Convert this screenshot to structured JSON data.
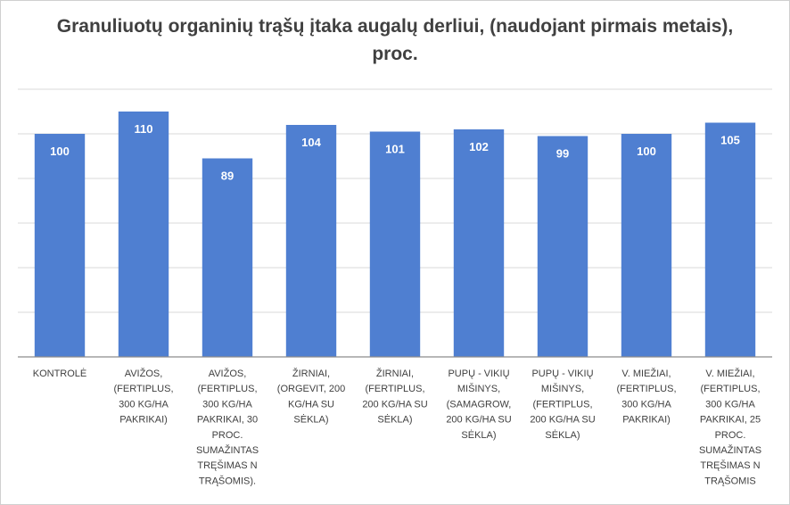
{
  "chart_data": {
    "type": "bar",
    "title": "Granuliuotų organinių trąšų įtaka augalų derliui, (naudojant pirmais metais), proc.",
    "xlabel": "",
    "ylabel": "",
    "ylim": [
      0,
      120
    ],
    "grid": true,
    "legend": "none",
    "categories": [
      "KONTROLĖ",
      "AVIŽOS, (FERTIPLUS, 300 KG/HA PAKRIKAI)",
      "AVIŽOS, (FERTIPLUS, 300 KG/HA PAKRIKAI, 30 PROC. SUMAŽINTAS TRĘŠIMAS N TRĄŠOMIS).",
      "ŽIRNIAI, (ORGEVIT, 200 KG/HA SU SĖKLA)",
      "ŽIRNIAI, (FERTIPLUS, 200 KG/HA SU SĖKLA)",
      "PUPŲ - VIKIŲ MIŠINYS, (SAMAGROW, 200 KG/HA SU SĖKLA)",
      "PUPŲ - VIKIŲ MIŠINYS, (FERTIPLUS, 200 KG/HA SU SĖKLA)",
      "V. MIEŽIAI, (FERTIPLUS, 300 KG/HA PAKRIKAI)",
      "V. MIEŽIAI, (FERTIPLUS, 300 KG/HA PAKRIKAI, 25 PROC. SUMAŽINTAS TRĘŠIMAS N TRĄŠOMIS"
    ],
    "category_lines": [
      [
        "KONTROLĖ"
      ],
      [
        "AVIŽOS,",
        "(FERTIPLUS,",
        "300 KG/HA",
        "PAKRIKAI)"
      ],
      [
        "AVIŽOS,",
        "(FERTIPLUS,",
        "300 KG/HA",
        "PAKRIKAI, 30",
        "PROC.",
        "SUMAŽINTAS",
        "TRĘŠIMAS N",
        "TRĄŠOMIS)."
      ],
      [
        "ŽIRNIAI,",
        "(ORGEVIT, 200",
        "KG/HA SU",
        "SĖKLA)"
      ],
      [
        "ŽIRNIAI,",
        "(FERTIPLUS,",
        "200 KG/HA SU",
        "SĖKLA)"
      ],
      [
        "PUPŲ - VIKIŲ",
        "MIŠINYS,",
        "(SAMAGROW,",
        "200 KG/HA SU",
        "SĖKLA)"
      ],
      [
        "PUPŲ - VIKIŲ",
        "MIŠINYS,",
        "(FERTIPLUS,",
        "200 KG/HA SU",
        "SĖKLA)"
      ],
      [
        "V. MIEŽIAI,",
        "(FERTIPLUS,",
        "300 KG/HA",
        "PAKRIKAI)"
      ],
      [
        "V. MIEŽIAI,",
        "(FERTIPLUS,",
        "300 KG/HA",
        "PAKRIKAI, 25",
        "PROC.",
        "SUMAŽINTAS",
        "TRĘŠIMAS N",
        "TRĄŠOMIS"
      ]
    ],
    "values": [
      100,
      110,
      89,
      104,
      101,
      102,
      99,
      100,
      105
    ],
    "data_labels": [
      "100",
      "110",
      "89",
      "104",
      "101",
      "102",
      "99",
      "100",
      "105"
    ],
    "bar_color": "#4f7fd1",
    "grid_color": "#d9d9d9",
    "axis_color": "#8c8c8c"
  }
}
